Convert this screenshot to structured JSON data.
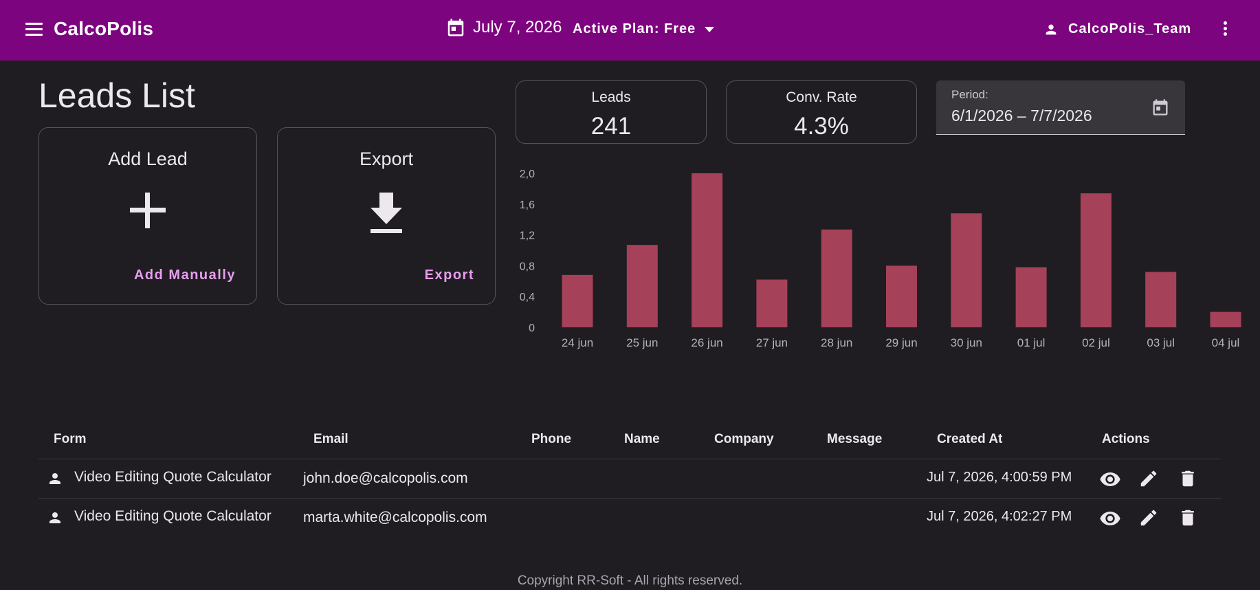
{
  "header": {
    "brand": "CalcoPolis",
    "date": "July 7, 2026",
    "plan": "Active Plan: Free",
    "user": "CalcoPolis_Team",
    "icons": [
      "menu-icon",
      "calendar-icon",
      "chevron-down-icon",
      "person-icon",
      "more-vert-icon"
    ]
  },
  "page_title": "Leads List",
  "cards": {
    "add": {
      "title": "Add Lead",
      "link": "Add Manually",
      "icon": "plus-icon"
    },
    "export": {
      "title": "Export",
      "link": "Export",
      "icon": "download-icon"
    }
  },
  "stats": {
    "leads": {
      "label": "Leads",
      "value": "241"
    },
    "conv": {
      "label": "Conv. Rate",
      "value": "4.3%"
    }
  },
  "period": {
    "label": "Period:",
    "value": "6/1/2026  – 7/7/2026",
    "icon": "calendar-icon"
  },
  "colors": {
    "topbar": "#7d047f",
    "accent_link": "#e89ef0",
    "bar": "#a54158",
    "background": "#1f1d21"
  },
  "chart_data": {
    "type": "bar",
    "categories": [
      "24 jun",
      "25 jun",
      "26 jun",
      "27 jun",
      "28 jun",
      "29 jun",
      "30 jun",
      "01 jul",
      "02 jul",
      "03 jul",
      "04 jul"
    ],
    "values": [
      0.68,
      1.07,
      2.0,
      0.62,
      1.27,
      0.8,
      1.48,
      0.78,
      1.74,
      0.72,
      0.2
    ],
    "yticks": [
      "0",
      "0,4",
      "0,8",
      "1,2",
      "1,6",
      "2,0"
    ],
    "ylim": [
      0,
      2.0
    ],
    "title": "",
    "xlabel": "",
    "ylabel": ""
  },
  "table": {
    "headers": {
      "form": "Form",
      "email": "Email",
      "phone": "Phone",
      "name": "Name",
      "company": "Company",
      "message": "Message",
      "created": "Created At",
      "actions": "Actions"
    },
    "rows": [
      {
        "form": "Video Editing Quote Calculator",
        "email": "john.doe@calcopolis.com",
        "phone": "",
        "name": "",
        "company": "",
        "message": "",
        "created": "Jul 7, 2026, 4:00:59 PM"
      },
      {
        "form": "Video Editing Quote Calculator",
        "email": "marta.white@calcopolis.com",
        "phone": "",
        "name": "",
        "company": "",
        "message": "",
        "created": "Jul 7, 2026, 4:02:27 PM"
      }
    ],
    "row_icons": [
      "person-icon",
      "view-icon",
      "edit-icon",
      "delete-icon"
    ]
  },
  "footer": "Copyright RR-Soft - All rights reserved."
}
